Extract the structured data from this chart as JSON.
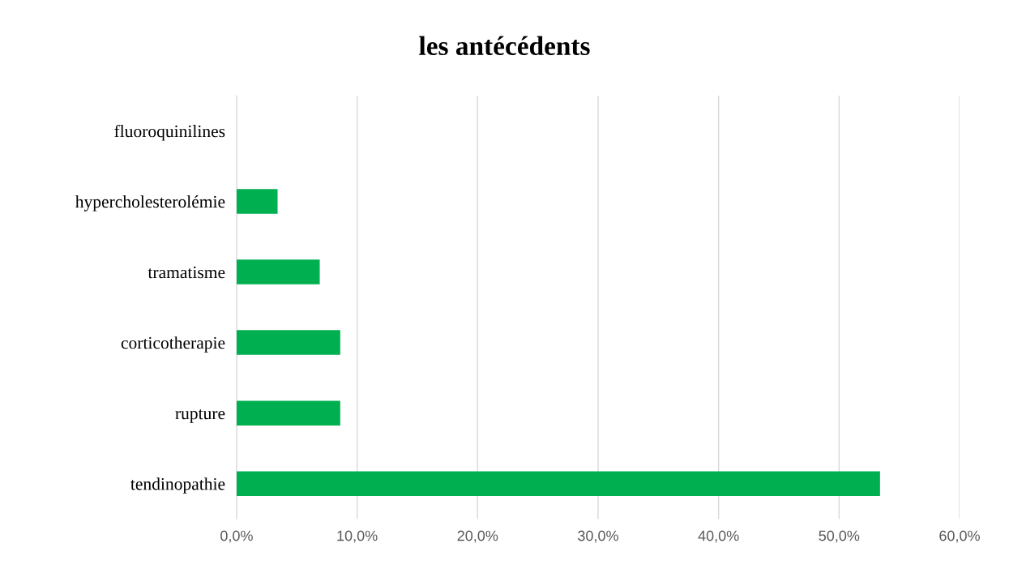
{
  "chart_data": {
    "type": "bar",
    "orientation": "horizontal",
    "title": "les antécédents",
    "categories": [
      "fluoroquinilines",
      "hypercholesterolémie",
      "tramatisme",
      "corticotherapie",
      "rupture",
      "tendinopathie"
    ],
    "values": [
      0,
      3.4,
      6.9,
      8.6,
      8.6,
      53.4
    ],
    "color": "#00b050",
    "xlim": [
      0,
      60
    ],
    "xticks": [
      {
        "value": 0,
        "label": "0,0%"
      },
      {
        "value": 10,
        "label": "10,0%"
      },
      {
        "value": 20,
        "label": "20,0%"
      },
      {
        "value": 30,
        "label": "30,0%"
      },
      {
        "value": 40,
        "label": "40,0%"
      },
      {
        "value": 50,
        "label": "50,0%"
      },
      {
        "value": 60,
        "label": "60,0%"
      }
    ],
    "grid": "x",
    "legend": false
  }
}
